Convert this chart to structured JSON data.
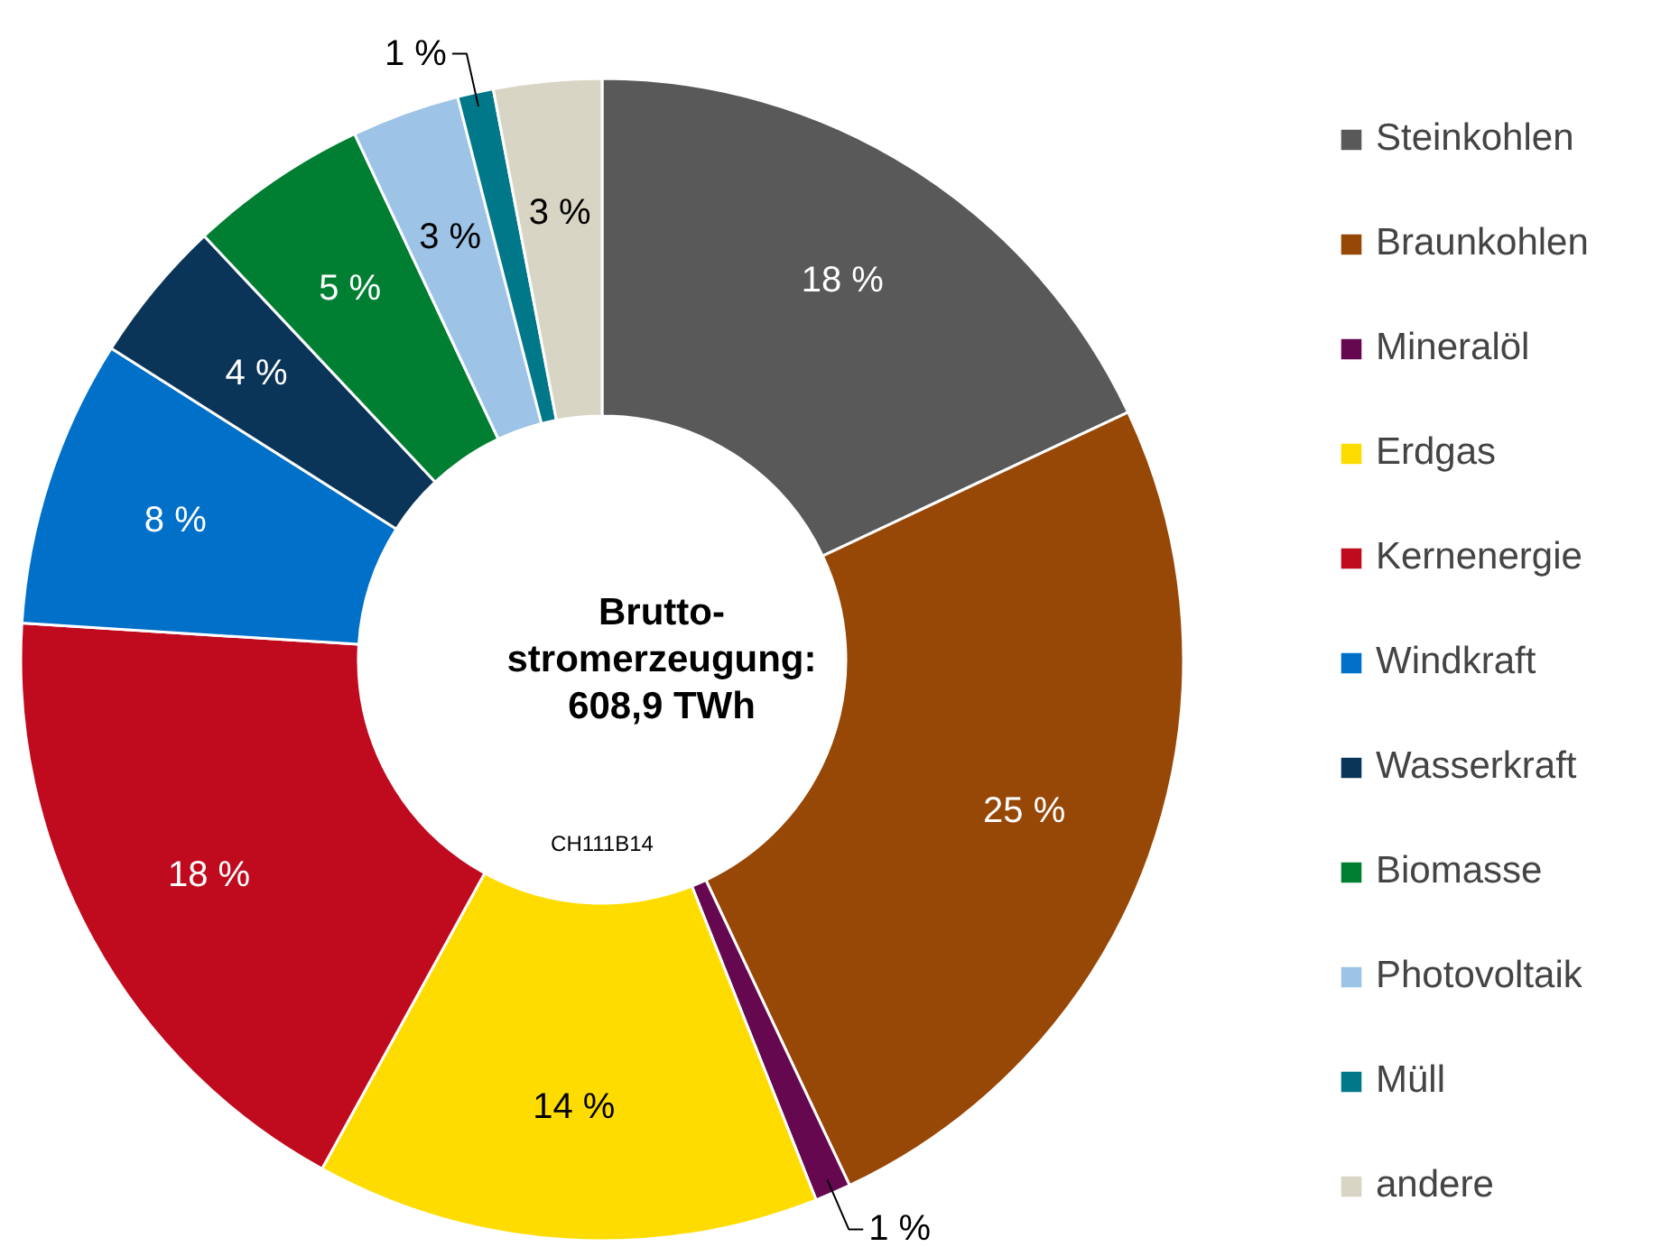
{
  "chart_data": {
    "type": "donut",
    "title": "Brutto-\nstromerzeugung:\n608,9 TWh",
    "categories": [
      "Steinkohlen",
      "Braunkohlen",
      "Mineralöl",
      "Erdgas",
      "Kernenergie",
      "Windkraft",
      "Wasserkraft",
      "Biomasse",
      "Photovoltaik",
      "Müll",
      "andere"
    ],
    "values": [
      18,
      25,
      1,
      14,
      18,
      8,
      4,
      5,
      3,
      1,
      3
    ],
    "value_labels": [
      "18 %",
      "25 %",
      "1 %",
      "14 %",
      "18 %",
      "8 %",
      "4 %",
      "5 %",
      "3 %",
      "1 %",
      "3 %"
    ],
    "colors": [
      "#595959",
      "#974706",
      "#66084f",
      "#ffdc00",
      "#c00a1e",
      "#0070c8",
      "#0b3558",
      "#007f33",
      "#9dc3e6",
      "#00788a",
      "#d9d5c5"
    ],
    "annotations": [
      "CH111B14"
    ],
    "legend": "right"
  }
}
